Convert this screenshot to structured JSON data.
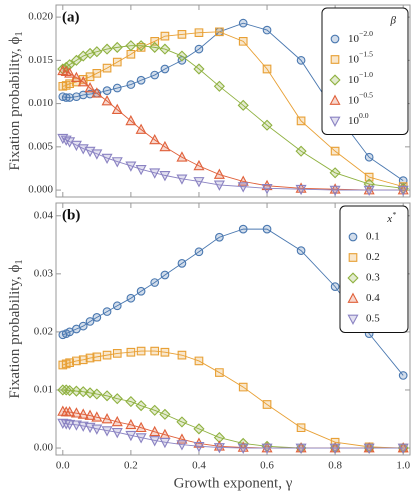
{
  "chart_data": [
    {
      "type": "line",
      "panel_label": "(a)",
      "y_label": "Fixation probability, ϕ1",
      "legend_title": "β",
      "legend": "upper right",
      "x": [
        0,
        0.01,
        0.02,
        0.04,
        0.06,
        0.08,
        0.1,
        0.13,
        0.16,
        0.2,
        0.23,
        0.27,
        0.3,
        0.35,
        0.4,
        0.46,
        0.53,
        0.6,
        0.7,
        0.8,
        0.9,
        1.0
      ],
      "xlim": [
        -0.02,
        1.02
      ],
      "ylim": [
        -0.0008,
        0.0214
      ],
      "yticks": [
        {
          "value": 0,
          "label": "0.000"
        },
        {
          "value": 0.005,
          "label": "0.005"
        },
        {
          "value": 0.01,
          "label": "0.010"
        },
        {
          "value": 0.015,
          "label": "0.015"
        },
        {
          "value": 0.02,
          "label": "0.020"
        }
      ],
      "series": [
        {
          "name": "10−2.0",
          "marker": "circle",
          "color": "#4a78b0",
          "values": [
            0.0108,
            0.0107,
            0.0107,
            0.0108,
            0.011,
            0.0111,
            0.0112,
            0.0115,
            0.0118,
            0.0122,
            0.0127,
            0.0133,
            0.014,
            0.015,
            0.0163,
            0.0183,
            0.0193,
            0.0185,
            0.015,
            0.009,
            0.0038,
            0.0011
          ]
        },
        {
          "name": "10−1.5",
          "marker": "square",
          "color": "#e8a035",
          "values": [
            0.012,
            0.0121,
            0.0123,
            0.0125,
            0.0128,
            0.0131,
            0.0135,
            0.0141,
            0.0148,
            0.0157,
            0.0165,
            0.0172,
            0.0178,
            0.018,
            0.0182,
            0.0183,
            0.0172,
            0.014,
            0.008,
            0.0045,
            0.0015,
            0.0004
          ]
        },
        {
          "name": "10−1.0",
          "marker": "diamond",
          "color": "#8fb140",
          "values": [
            0.014,
            0.0142,
            0.0145,
            0.015,
            0.0155,
            0.0158,
            0.016,
            0.0163,
            0.0165,
            0.0167,
            0.0167,
            0.0165,
            0.0163,
            0.0155,
            0.014,
            0.012,
            0.0098,
            0.0075,
            0.0045,
            0.002,
            0.0007,
            0.0002
          ]
        },
        {
          "name": "10−0.5",
          "marker": "triangle",
          "color": "#e0603a",
          "values": [
            0.0138,
            0.0137,
            0.0135,
            0.013,
            0.0125,
            0.0118,
            0.0112,
            0.0103,
            0.0093,
            0.008,
            0.007,
            0.0058,
            0.005,
            0.0038,
            0.0028,
            0.0018,
            0.001,
            0.0005,
            0.0002,
            0.0001,
            0,
            0
          ]
        },
        {
          "name": "100.0",
          "marker": "down",
          "color": "#8a82c2",
          "values": [
            0.006,
            0.0058,
            0.0056,
            0.0052,
            0.0048,
            0.0045,
            0.0042,
            0.0037,
            0.0033,
            0.0028,
            0.0024,
            0.002,
            0.0017,
            0.0013,
            0.001,
            0.0006,
            0.0004,
            0.0002,
            0.0001,
            0,
            0,
            0
          ]
        }
      ]
    },
    {
      "type": "line",
      "panel_label": "(b)",
      "y_label": "Fixation probability, ϕ1",
      "x_label": "Growth exponent, γ",
      "legend_title": "x*",
      "legend": "upper right",
      "x": [
        0,
        0.01,
        0.02,
        0.04,
        0.06,
        0.08,
        0.1,
        0.13,
        0.16,
        0.2,
        0.23,
        0.27,
        0.3,
        0.35,
        0.4,
        0.46,
        0.53,
        0.6,
        0.7,
        0.8,
        0.9,
        1.0
      ],
      "xlim": [
        -0.02,
        1.02
      ],
      "ylim": [
        -0.0012,
        0.0422
      ],
      "xticks": [
        {
          "value": 0,
          "label": "0.0"
        },
        0.2,
        0.4,
        0.6,
        0.8,
        {
          "value": 1,
          "label": "1.0"
        }
      ],
      "yticks": [
        {
          "value": 0,
          "label": "0.00"
        },
        {
          "value": 0.01,
          "label": "0.01"
        },
        {
          "value": 0.02,
          "label": "0.02"
        },
        {
          "value": 0.03,
          "label": "0.03"
        },
        {
          "value": 0.04,
          "label": "0.04"
        }
      ],
      "series": [
        {
          "name": "0.1",
          "marker": "circle",
          "color": "#4a78b0",
          "values": [
            0.0195,
            0.0197,
            0.02,
            0.0205,
            0.021,
            0.0218,
            0.0225,
            0.0235,
            0.0245,
            0.0258,
            0.027,
            0.0285,
            0.0298,
            0.0318,
            0.0338,
            0.0363,
            0.0377,
            0.0377,
            0.034,
            0.0278,
            0.0197,
            0.0125
          ]
        },
        {
          "name": "0.2",
          "marker": "square",
          "color": "#e8a035",
          "values": [
            0.0143,
            0.0145,
            0.0147,
            0.015,
            0.0152,
            0.0155,
            0.0157,
            0.016,
            0.0163,
            0.0165,
            0.0167,
            0.0167,
            0.0165,
            0.016,
            0.015,
            0.013,
            0.0105,
            0.0075,
            0.0035,
            0.001,
            0.0002,
            0
          ]
        },
        {
          "name": "0.3",
          "marker": "diamond",
          "color": "#8fb140",
          "values": [
            0.01,
            0.01,
            0.0099,
            0.0098,
            0.0097,
            0.0095,
            0.0093,
            0.009,
            0.0085,
            0.008,
            0.0073,
            0.0065,
            0.0058,
            0.0045,
            0.0033,
            0.0018,
            0.0008,
            0.0003,
            0,
            0,
            0,
            0
          ]
        },
        {
          "name": "0.4",
          "marker": "triangle",
          "color": "#e0603a",
          "values": [
            0.0063,
            0.0062,
            0.0062,
            0.006,
            0.0058,
            0.0056,
            0.0053,
            0.005,
            0.0045,
            0.004,
            0.0035,
            0.0028,
            0.0023,
            0.0015,
            0.0008,
            0.0003,
            0.0001,
            0,
            0,
            0,
            0,
            0
          ]
        },
        {
          "name": "0.5",
          "marker": "down",
          "color": "#8a82c2",
          "values": [
            0.0043,
            0.0042,
            0.0041,
            0.004,
            0.0038,
            0.0036,
            0.0033,
            0.003,
            0.0027,
            0.0022,
            0.0018,
            0.0013,
            0.001,
            0.0006,
            0.0003,
            0.0001,
            0,
            0,
            0,
            0,
            0,
            0
          ]
        }
      ]
    }
  ]
}
